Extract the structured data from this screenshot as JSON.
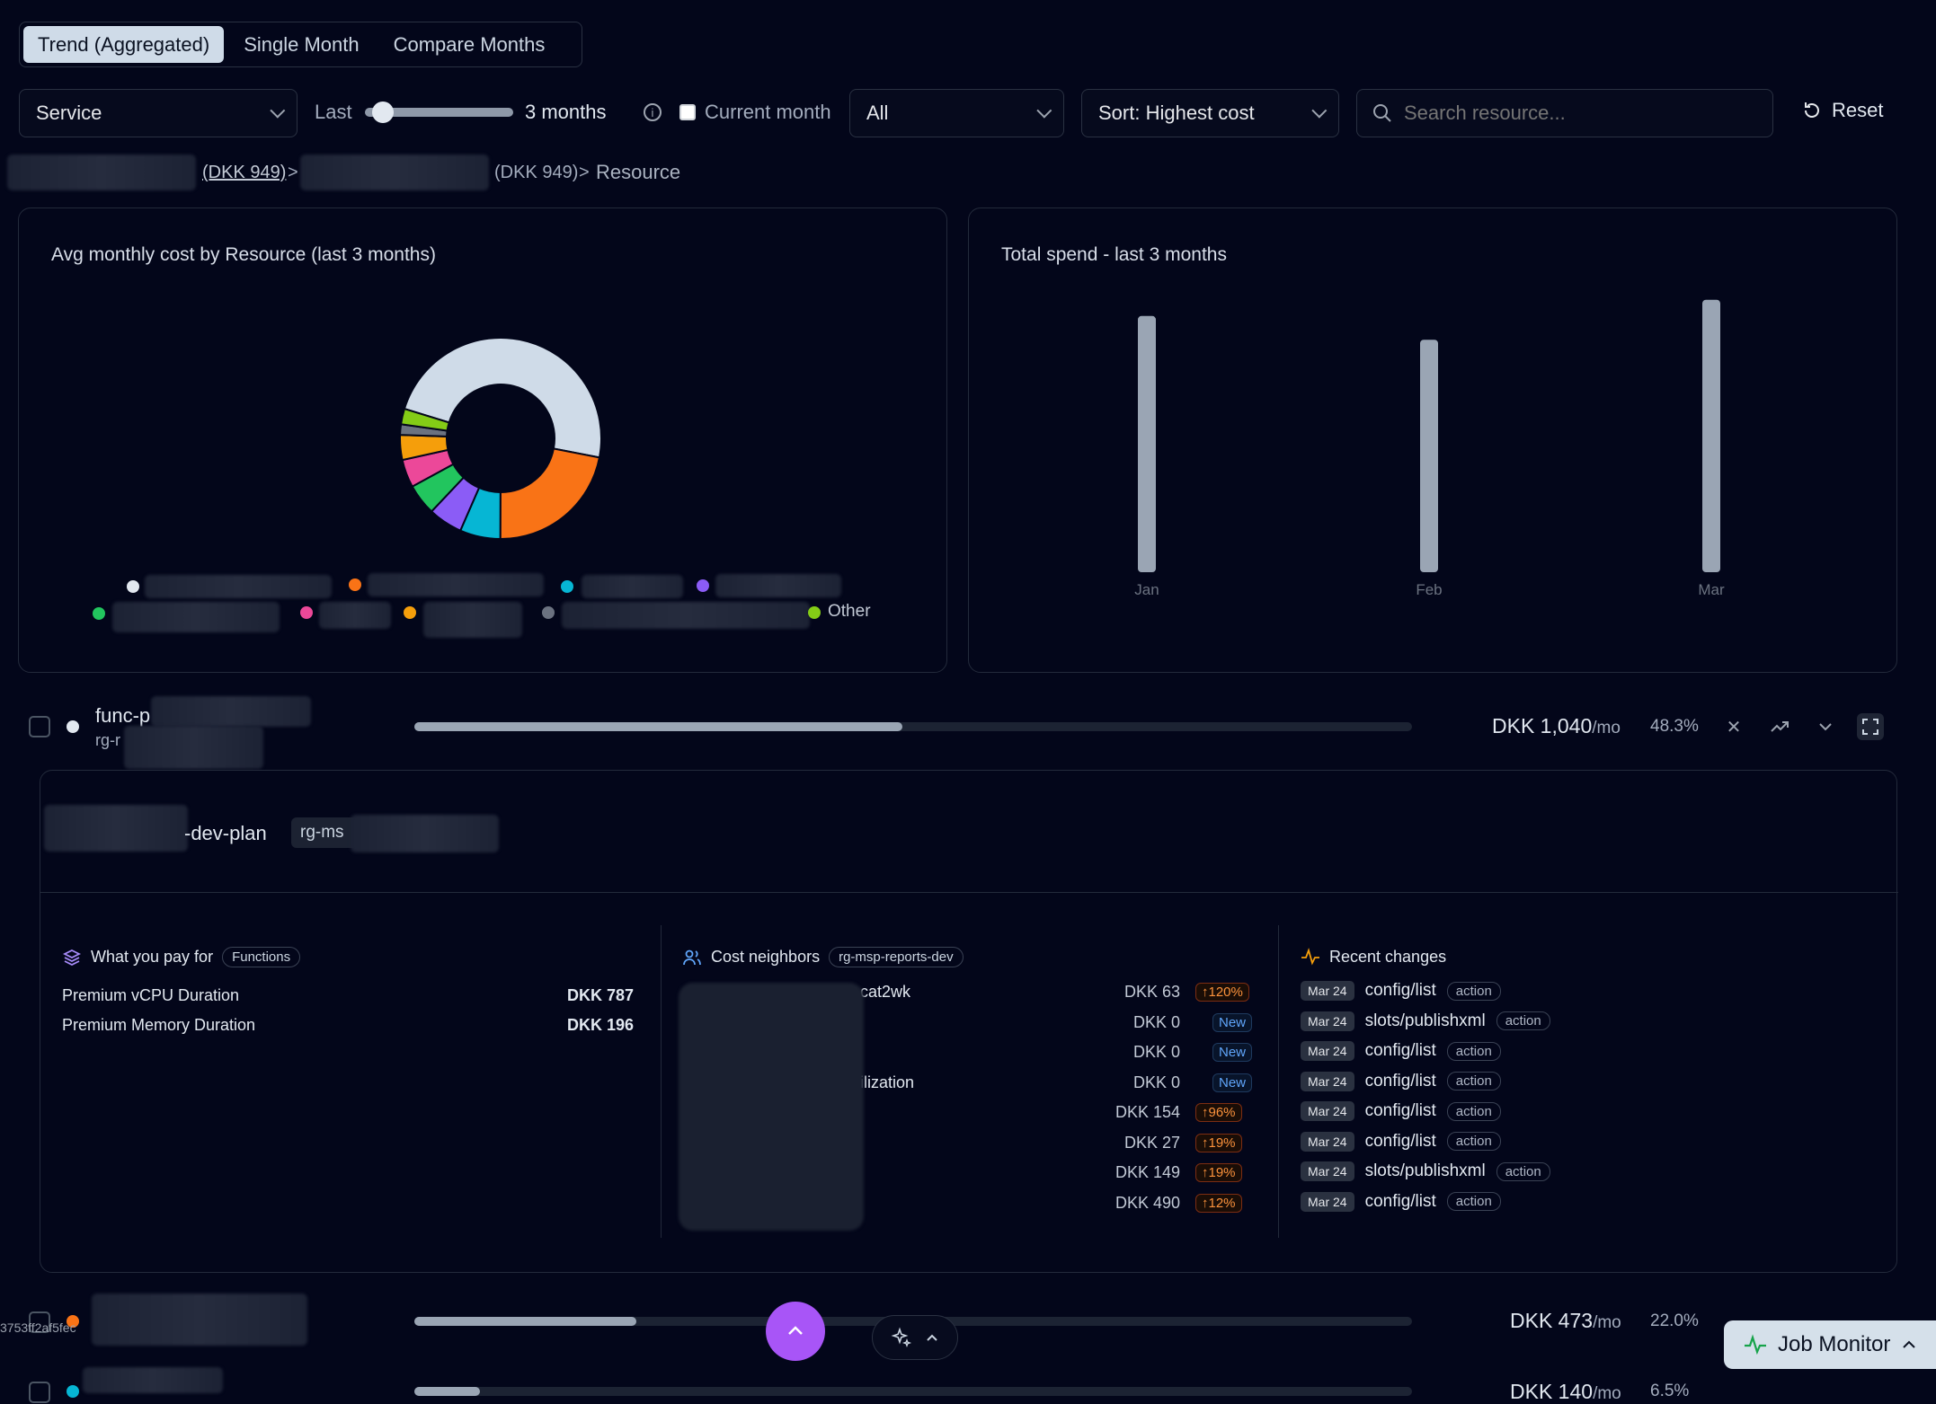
{
  "tabs": [
    {
      "label": "Trend (Aggregated)",
      "active": true
    },
    {
      "label": "Single Month",
      "active": false
    },
    {
      "label": "Compare Months",
      "active": false
    }
  ],
  "filters": {
    "group_by": "Service",
    "last_label": "Last",
    "months_value": 3,
    "months_label": "3 months",
    "current_month_label": "Current month",
    "scope": "All",
    "sort": "Sort: Highest cost",
    "search_placeholder": "Search resource...",
    "reset_label": "Reset"
  },
  "breadcrumb": {
    "link1": "(DKK 949)",
    "sep1": ">",
    "item2": "(DKK 949)",
    "sep2": ">",
    "current": "Resource"
  },
  "donut_panel": {
    "title": "Avg monthly cost by Resource (last 3 months)",
    "other_label": "Other"
  },
  "bar_panel": {
    "title": "Total spend - last 3 months"
  },
  "chart_data": [
    {
      "type": "pie",
      "title": "Avg monthly cost by Resource (last 3 months)",
      "slices": [
        {
          "label": "",
          "value": 48.3,
          "color": "#cfdbe8"
        },
        {
          "label": "",
          "value": 22.0,
          "color": "#f97316"
        },
        {
          "label": "",
          "value": 6.5,
          "color": "#06b6d4"
        },
        {
          "label": "",
          "value": 5.5,
          "color": "#8b5cf6"
        },
        {
          "label": "",
          "value": 5.0,
          "color": "#22c55e"
        },
        {
          "label": "",
          "value": 4.5,
          "color": "#ec4899"
        },
        {
          "label": "",
          "value": 4.0,
          "color": "#f59e0b"
        },
        {
          "label": "",
          "value": 1.7,
          "color": "#6b7280"
        },
        {
          "label": "Other",
          "value": 2.5,
          "color": "#84cc16"
        }
      ]
    },
    {
      "type": "bar",
      "title": "Total spend - last 3 months",
      "categories": [
        "Jan",
        "Feb",
        "Mar"
      ],
      "values": [
        2050,
        1860,
        2180
      ],
      "ylim": [
        0,
        2300
      ],
      "color": "#9aa5b4"
    }
  ],
  "rows": [
    {
      "name_prefix": "func-p",
      "sub_prefix": "rg-r",
      "dot_color": "#e2e8f0",
      "fill_pct": 48.3,
      "cost": "DKK 1,040",
      "per": "/mo",
      "share": "48.3%"
    },
    {
      "name_prefix": "",
      "sub_prefix": "",
      "dot_color": "#f97316",
      "fill_pct": 22.0,
      "cost": "DKK 473",
      "per": "/mo",
      "share": "22.0%"
    },
    {
      "name_prefix": "",
      "sub_prefix": "",
      "dot_color": "#06b6d4",
      "fill_pct": 6.5,
      "cost": "DKK 140",
      "per": "/mo",
      "share": "6.5%"
    }
  ],
  "detail": {
    "plan_suffix": "-dev-plan",
    "rg_prefix": "rg-ms",
    "pay_title": "What you pay for",
    "pay_tag": "Functions",
    "pay_items": [
      {
        "label": "Premium vCPU Duration",
        "value": "DKK 787"
      },
      {
        "label": "Premium Memory Duration",
        "value": "DKK 196"
      }
    ],
    "neighbors_title": "Cost neighbors",
    "neighbors_tag": "rg-msp-reports-dev",
    "neighbors": [
      {
        "name": "cat2wk",
        "value": "DKK 63",
        "badge": "↑120%",
        "kind": "up"
      },
      {
        "name": "",
        "value": "DKK 0",
        "badge": "New",
        "kind": "new"
      },
      {
        "name": "",
        "value": "DKK 0",
        "badge": "New",
        "kind": "new"
      },
      {
        "name": "ilization",
        "value": "DKK 0",
        "badge": "New",
        "kind": "new"
      },
      {
        "name": "",
        "value": "DKK 154",
        "badge": "↑96%",
        "kind": "up"
      },
      {
        "name": "",
        "value": "DKK 27",
        "badge": "↑19%",
        "kind": "up"
      },
      {
        "name": "",
        "value": "DKK 149",
        "badge": "↑19%",
        "kind": "up"
      },
      {
        "name": "",
        "value": "DKK 490",
        "badge": "↑12%",
        "kind": "up"
      }
    ],
    "changes_title": "Recent changes",
    "changes": [
      {
        "date": "Mar 24",
        "path": "config/list",
        "type": "action"
      },
      {
        "date": "Mar 24",
        "path": "slots/publishxml",
        "type": "action"
      },
      {
        "date": "Mar 24",
        "path": "config/list",
        "type": "action"
      },
      {
        "date": "Mar 24",
        "path": "config/list",
        "type": "action"
      },
      {
        "date": "Mar 24",
        "path": "config/list",
        "type": "action"
      },
      {
        "date": "Mar 24",
        "path": "config/list",
        "type": "action"
      },
      {
        "date": "Mar 24",
        "path": "slots/publishxml",
        "type": "action"
      },
      {
        "date": "Mar 24",
        "path": "config/list",
        "type": "action"
      }
    ]
  },
  "footer": {
    "hash_fragment": "3753ff2af5fec",
    "job_monitor": "Job Monitor"
  }
}
